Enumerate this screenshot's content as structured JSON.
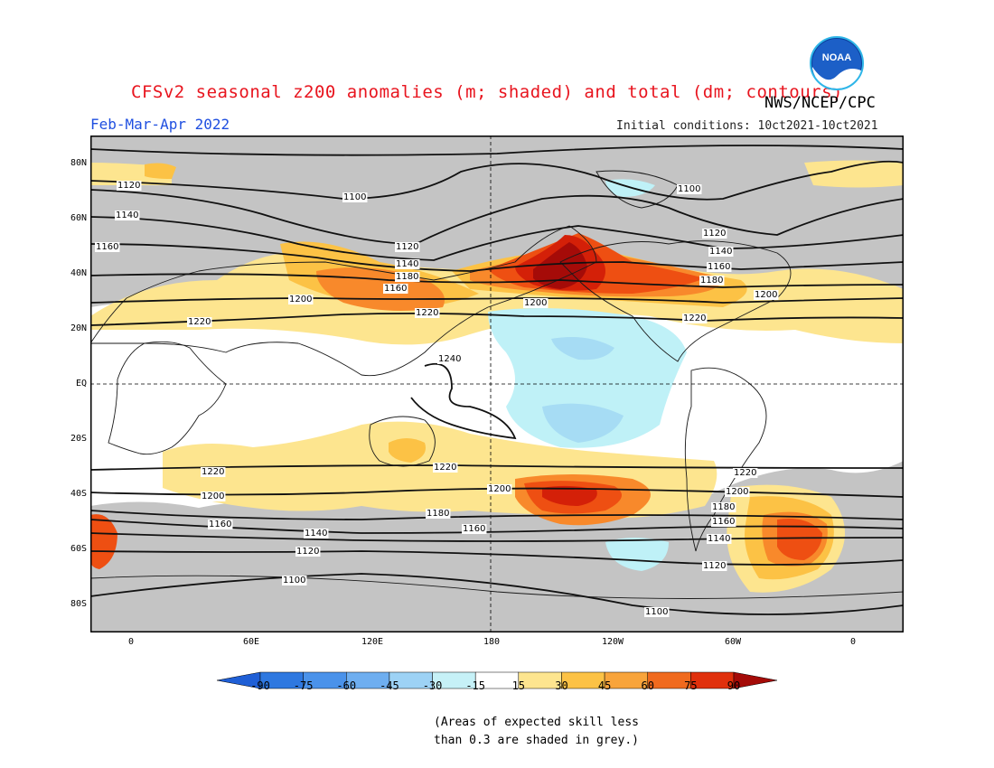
{
  "header": {
    "title": "CFSv2 seasonal z200 anomalies (m; shaded) and total (dm; contours)",
    "agency": "NWS/NCEP/CPC",
    "period": "Feb-Mar-Apr 2022",
    "initial_conditions": "Initial conditions: 10ct2021-10ct2021",
    "logo_text": "NOAA"
  },
  "map": {
    "lat_labels": [
      "80N",
      "60N",
      "40N",
      "20N",
      "EQ",
      "20S",
      "40S",
      "60S",
      "80S"
    ],
    "lon_labels": [
      "0",
      "60E",
      "120E",
      "180",
      "120W",
      "60W",
      "0"
    ],
    "contour_labels": [
      "1100",
      "1120",
      "1140",
      "1160",
      "1180",
      "1200",
      "1220",
      "1240"
    ],
    "colors": {
      "skill_mask": "#c4c4c4",
      "pos_15": "#fde58f",
      "pos_30": "#fcc245",
      "pos_45": "#f8892b",
      "pos_60": "#ee4f12",
      "pos_75": "#d42008",
      "pos_90": "#a50b08",
      "neg_15": "#bff1f7",
      "neg_30": "#a6dcf4",
      "neg_45": "#8bc2ef"
    }
  },
  "colorbar": {
    "labels": [
      "-90",
      "-75",
      "-60",
      "-45",
      "-30",
      "-15",
      "15",
      "30",
      "45",
      "60",
      "75",
      "90"
    ],
    "colors": [
      "#1f5fd6",
      "#2e78e0",
      "#4a92ea",
      "#6eaef0",
      "#9dd2f5",
      "#c6f1f7",
      "#ffffff",
      "#fde58f",
      "#fcc245",
      "#f8a43b",
      "#f06a1e",
      "#e0300c",
      "#a50b08"
    ]
  },
  "footnote": {
    "line1": "(Areas of expected skill less",
    "line2": "than 0.3 are shaded in grey.)"
  }
}
